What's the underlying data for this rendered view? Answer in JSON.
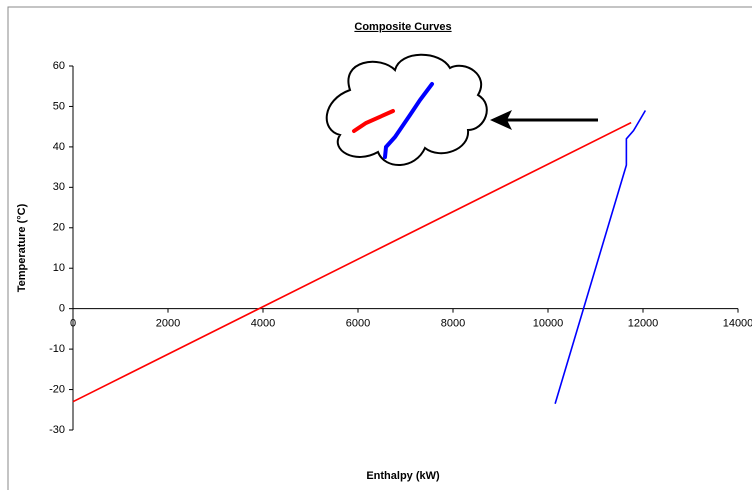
{
  "chart_data": {
    "type": "line",
    "title": "Composite Curves",
    "x_label": "Enthalpy (kW)",
    "y_label": "Temperature (°C)",
    "series": [
      {
        "color": "#ff0000",
        "x": [
          0,
          11750
        ],
        "values": [
          -23,
          46
        ]
      },
      {
        "color": "#0000ff",
        "x": [
          10150,
          11650,
          11650,
          11800,
          12050
        ],
        "values": [
          -23.5,
          35.5,
          42,
          44,
          49
        ]
      }
    ],
    "xlim": [
      0,
      14000
    ],
    "xticks": [
      0,
      2000,
      4000,
      6000,
      8000,
      10000,
      12000,
      14000
    ],
    "ylim": [
      -30,
      60
    ],
    "yticks": [
      -30,
      -20,
      -10,
      0,
      10,
      20,
      30,
      40,
      50,
      60
    ]
  }
}
